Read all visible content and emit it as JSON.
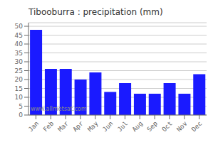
{
  "chart_data": {
    "type": "bar",
    "title": "Tibooburra : precipitation (mm)",
    "categories": [
      "Jan",
      "Feb",
      "Mar",
      "Apr",
      "May",
      "Jun",
      "Jul",
      "Aug",
      "Sep",
      "Oct",
      "Nov",
      "Dec"
    ],
    "values": [
      48,
      26,
      26,
      20,
      24,
      13,
      18,
      12,
      12,
      18,
      12,
      23
    ],
    "color": "#1a1aff",
    "ylim": [
      0,
      52
    ],
    "yticks": [
      0,
      5,
      10,
      15,
      20,
      25,
      30,
      35,
      40,
      45,
      50
    ],
    "grid": true,
    "annotations": [
      "www.allmetsat.com"
    ]
  }
}
